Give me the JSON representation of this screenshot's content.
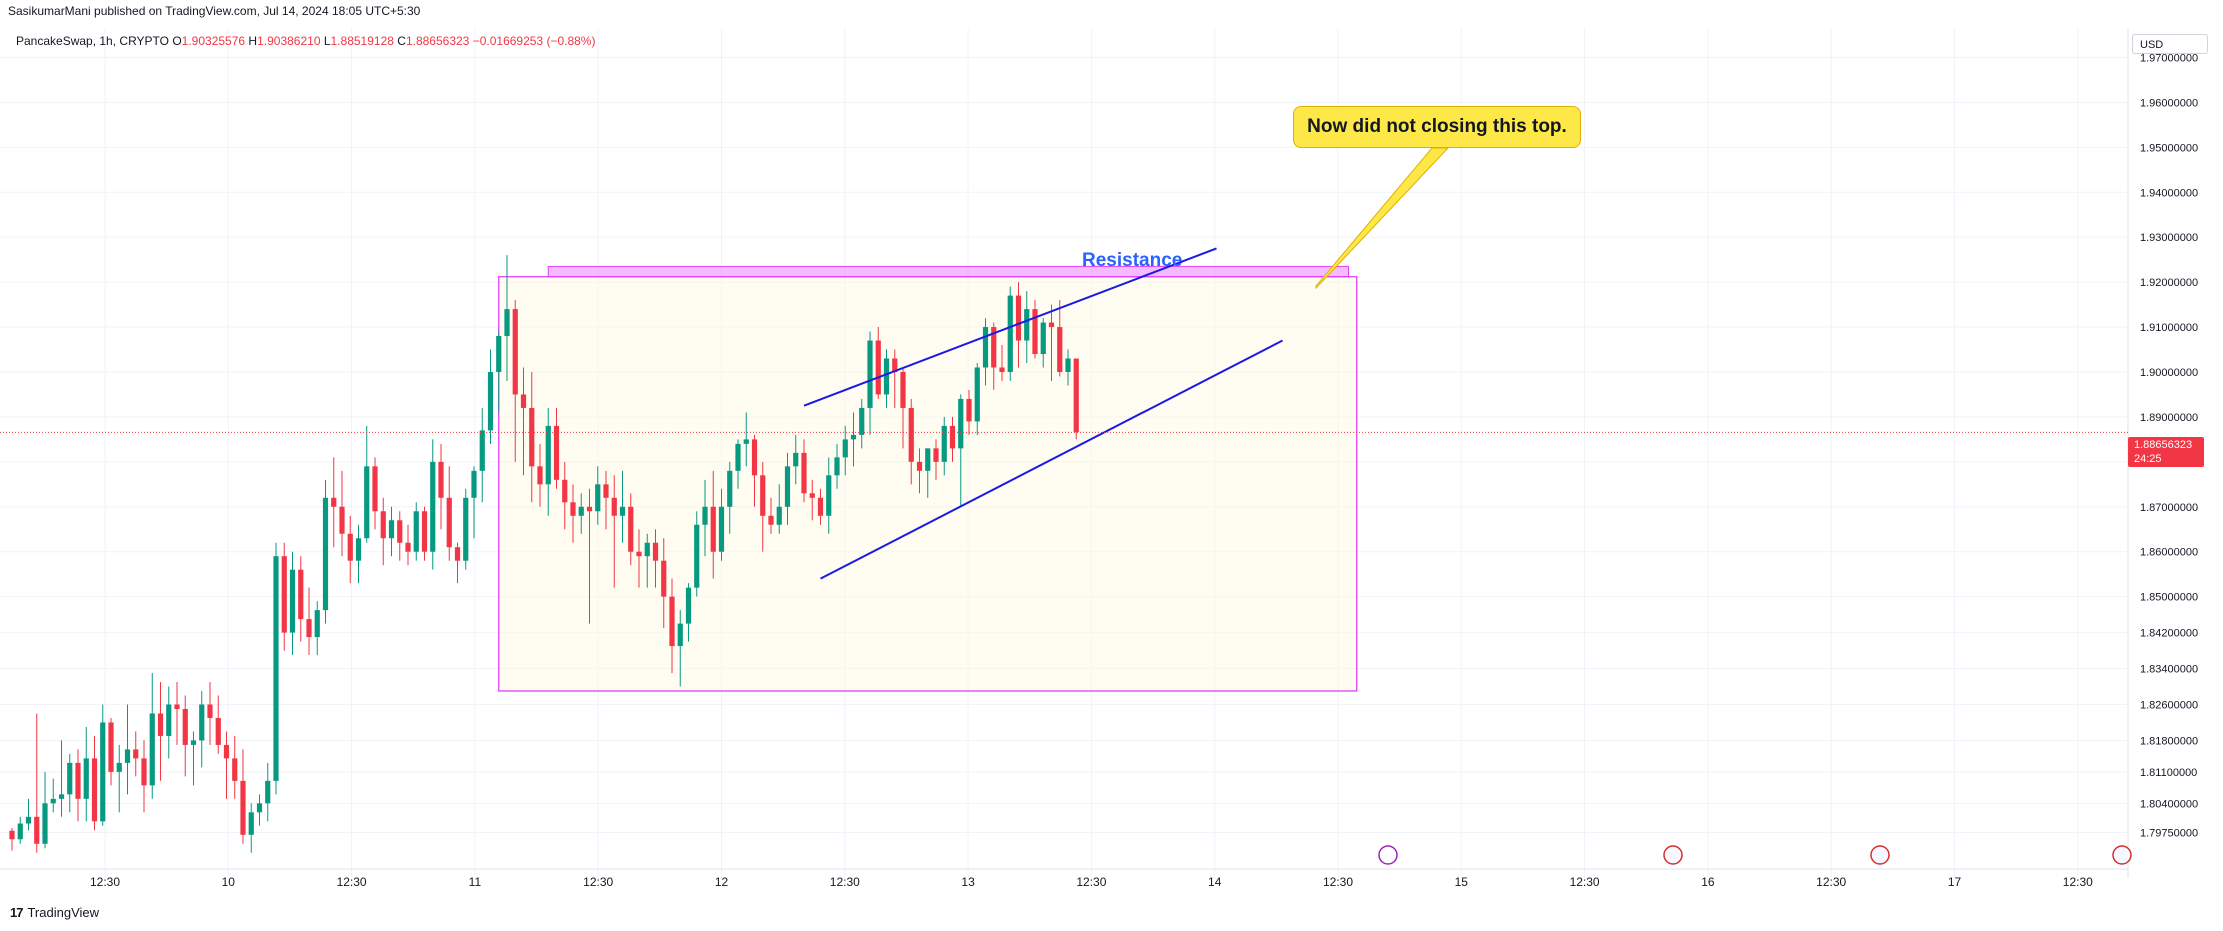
{
  "header": {
    "published": "SasikumarMani published on TradingView.com, Jul 14, 2024 18:05 UTC+5:30",
    "symbol": "PancakeSwap, 1h, CRYPTO",
    "open_label": "O",
    "open": "1.90325576",
    "high_label": "H",
    "high": "1.90386210",
    "low_label": "L",
    "low": "1.88519128",
    "close_label": "C",
    "close": "1.88656323",
    "change": "−0.01669253 (−0.88%)"
  },
  "currency": "USD",
  "price_tag": {
    "price": "1.88656323",
    "countdown": "24:25"
  },
  "annotations": {
    "callout": "Now did not closing this top.",
    "resistance": "Resistance"
  },
  "footer": {
    "brand": "TradingView"
  },
  "colors": {
    "up": "#089981",
    "down": "#f23645",
    "trendline": "#1a1ae6",
    "zone": "#e040fb",
    "callout_bg": "#fde848",
    "resistance_text": "#2962ff"
  },
  "chart_data": {
    "type": "candlestick",
    "interval": "1h",
    "ylim": [
      1.7925,
      1.975
    ],
    "y_ticks": [
      "1.97000000",
      "1.96000000",
      "1.95000000",
      "1.94000000",
      "1.93000000",
      "1.92000000",
      "1.91000000",
      "1.90000000",
      "1.89000000",
      "1.88000000",
      "1.87000000",
      "1.86000000",
      "1.85000000",
      "1.84200000",
      "1.83400000",
      "1.82600000",
      "1.81800000",
      "1.81100000",
      "1.80400000",
      "1.79750000"
    ],
    "x_ticks": [
      "12:30",
      "10",
      "12:30",
      "11",
      "12:30",
      "12",
      "12:30",
      "13",
      "12:30",
      "14",
      "12:30",
      "15",
      "12:30",
      "16",
      "12:30",
      "17",
      "12:30"
    ],
    "last_price": 1.88656323,
    "candles": [
      [
        1.7979,
        1.7985,
        1.7935,
        1.796
      ],
      [
        1.796,
        1.801,
        1.795,
        1.7995
      ],
      [
        1.7995,
        1.805,
        1.798,
        1.801
      ],
      [
        1.801,
        1.824,
        1.793,
        1.795
      ],
      [
        1.795,
        1.811,
        1.794,
        1.804
      ],
      [
        1.804,
        1.8095,
        1.802,
        1.805
      ],
      [
        1.805,
        1.818,
        1.801,
        1.806
      ],
      [
        1.806,
        1.815,
        1.802,
        1.813
      ],
      [
        1.813,
        1.816,
        1.8,
        1.805
      ],
      [
        1.805,
        1.821,
        1.8,
        1.814
      ],
      [
        1.814,
        1.819,
        1.798,
        1.8
      ],
      [
        1.8,
        1.826,
        1.799,
        1.822
      ],
      [
        1.822,
        1.823,
        1.808,
        1.811
      ],
      [
        1.811,
        1.817,
        1.802,
        1.813
      ],
      [
        1.813,
        1.826,
        1.806,
        1.816
      ],
      [
        1.816,
        1.82,
        1.81,
        1.814
      ],
      [
        1.814,
        1.818,
        1.802,
        1.808
      ],
      [
        1.808,
        1.833,
        1.805,
        1.824
      ],
      [
        1.824,
        1.831,
        1.809,
        1.819
      ],
      [
        1.819,
        1.83,
        1.814,
        1.826
      ],
      [
        1.826,
        1.831,
        1.817,
        1.825
      ],
      [
        1.825,
        1.828,
        1.81,
        1.817
      ],
      [
        1.817,
        1.82,
        1.808,
        1.818
      ],
      [
        1.818,
        1.829,
        1.812,
        1.826
      ],
      [
        1.826,
        1.831,
        1.817,
        1.823
      ],
      [
        1.823,
        1.828,
        1.815,
        1.817
      ],
      [
        1.817,
        1.82,
        1.805,
        1.814
      ],
      [
        1.814,
        1.819,
        1.805,
        1.809
      ],
      [
        1.809,
        1.816,
        1.795,
        1.797
      ],
      [
        1.797,
        1.804,
        1.793,
        1.802
      ],
      [
        1.802,
        1.806,
        1.799,
        1.804
      ],
      [
        1.804,
        1.813,
        1.8,
        1.809
      ],
      [
        1.809,
        1.862,
        1.806,
        1.859
      ],
      [
        1.859,
        1.862,
        1.838,
        1.842
      ],
      [
        1.842,
        1.86,
        1.837,
        1.856
      ],
      [
        1.856,
        1.859,
        1.84,
        1.845
      ],
      [
        1.845,
        1.852,
        1.837,
        1.841
      ],
      [
        1.841,
        1.849,
        1.837,
        1.847
      ],
      [
        1.847,
        1.876,
        1.844,
        1.872
      ],
      [
        1.872,
        1.881,
        1.861,
        1.87
      ],
      [
        1.87,
        1.878,
        1.859,
        1.864
      ],
      [
        1.864,
        1.868,
        1.853,
        1.858
      ],
      [
        1.858,
        1.866,
        1.853,
        1.863
      ],
      [
        1.863,
        1.888,
        1.862,
        1.879
      ],
      [
        1.879,
        1.881,
        1.865,
        1.869
      ],
      [
        1.869,
        1.872,
        1.857,
        1.863
      ],
      [
        1.863,
        1.87,
        1.859,
        1.867
      ],
      [
        1.867,
        1.869,
        1.858,
        1.862
      ],
      [
        1.862,
        1.866,
        1.857,
        1.86
      ],
      [
        1.86,
        1.871,
        1.858,
        1.869
      ],
      [
        1.869,
        1.87,
        1.858,
        1.86
      ],
      [
        1.86,
        1.885,
        1.856,
        1.88
      ],
      [
        1.88,
        1.884,
        1.865,
        1.872
      ],
      [
        1.872,
        1.879,
        1.858,
        1.861
      ],
      [
        1.861,
        1.862,
        1.853,
        1.858
      ],
      [
        1.858,
        1.874,
        1.856,
        1.872
      ],
      [
        1.872,
        1.879,
        1.863,
        1.878
      ],
      [
        1.878,
        1.892,
        1.871,
        1.887
      ],
      [
        1.887,
        1.905,
        1.884,
        1.9
      ],
      [
        1.9,
        1.909,
        1.891,
        1.908
      ],
      [
        1.908,
        1.926,
        1.898,
        1.914
      ],
      [
        1.914,
        1.916,
        1.88,
        1.895
      ],
      [
        1.895,
        1.901,
        1.877,
        1.892
      ],
      [
        1.892,
        1.9,
        1.871,
        1.879
      ],
      [
        1.879,
        1.884,
        1.87,
        1.875
      ],
      [
        1.875,
        1.892,
        1.868,
        1.888
      ],
      [
        1.888,
        1.892,
        1.874,
        1.876
      ],
      [
        1.876,
        1.88,
        1.865,
        1.871
      ],
      [
        1.871,
        1.875,
        1.862,
        1.868
      ],
      [
        1.868,
        1.873,
        1.864,
        1.87
      ],
      [
        1.87,
        1.874,
        1.844,
        1.869
      ],
      [
        1.869,
        1.879,
        1.866,
        1.875
      ],
      [
        1.875,
        1.878,
        1.865,
        1.872
      ],
      [
        1.872,
        1.877,
        1.852,
        1.868
      ],
      [
        1.868,
        1.878,
        1.862,
        1.87
      ],
      [
        1.87,
        1.873,
        1.857,
        1.86
      ],
      [
        1.86,
        1.865,
        1.852,
        1.859
      ],
      [
        1.859,
        1.864,
        1.852,
        1.862
      ],
      [
        1.862,
        1.865,
        1.852,
        1.858
      ],
      [
        1.858,
        1.863,
        1.843,
        1.85
      ],
      [
        1.85,
        1.854,
        1.833,
        1.839
      ],
      [
        1.839,
        1.847,
        1.83,
        1.844
      ],
      [
        1.844,
        1.853,
        1.84,
        1.852
      ],
      [
        1.852,
        1.869,
        1.85,
        1.866
      ],
      [
        1.866,
        1.876,
        1.859,
        1.87
      ],
      [
        1.87,
        1.878,
        1.854,
        1.86
      ],
      [
        1.86,
        1.874,
        1.858,
        1.87
      ],
      [
        1.87,
        1.88,
        1.864,
        1.878
      ],
      [
        1.878,
        1.885,
        1.874,
        1.884
      ],
      [
        1.884,
        1.891,
        1.879,
        1.885
      ],
      [
        1.885,
        1.886,
        1.87,
        1.877
      ],
      [
        1.877,
        1.88,
        1.86,
        1.868
      ],
      [
        1.868,
        1.872,
        1.864,
        1.866
      ],
      [
        1.866,
        1.875,
        1.864,
        1.87
      ],
      [
        1.87,
        1.882,
        1.866,
        1.879
      ],
      [
        1.879,
        1.886,
        1.875,
        1.882
      ],
      [
        1.882,
        1.885,
        1.871,
        1.873
      ],
      [
        1.873,
        1.876,
        1.867,
        1.872
      ],
      [
        1.872,
        1.874,
        1.866,
        1.868
      ],
      [
        1.868,
        1.881,
        1.864,
        1.877
      ],
      [
        1.877,
        1.884,
        1.874,
        1.881
      ],
      [
        1.881,
        1.888,
        1.877,
        1.885
      ],
      [
        1.885,
        1.891,
        1.879,
        1.886
      ],
      [
        1.886,
        1.894,
        1.883,
        1.892
      ],
      [
        1.892,
        1.909,
        1.886,
        1.907
      ],
      [
        1.907,
        1.91,
        1.894,
        1.895
      ],
      [
        1.895,
        1.905,
        1.892,
        1.903
      ],
      [
        1.903,
        1.905,
        1.892,
        1.9
      ],
      [
        1.9,
        1.901,
        1.883,
        1.892
      ],
      [
        1.892,
        1.894,
        1.875,
        1.88
      ],
      [
        1.88,
        1.883,
        1.873,
        1.878
      ],
      [
        1.878,
        1.883,
        1.872,
        1.883
      ],
      [
        1.883,
        1.885,
        1.876,
        1.88
      ],
      [
        1.88,
        1.89,
        1.877,
        1.888
      ],
      [
        1.888,
        1.89,
        1.88,
        1.883
      ],
      [
        1.883,
        1.895,
        1.87,
        1.894
      ],
      [
        1.894,
        1.896,
        1.886,
        1.889
      ],
      [
        1.889,
        1.902,
        1.886,
        1.901
      ],
      [
        1.901,
        1.912,
        1.897,
        1.91
      ],
      [
        1.91,
        1.911,
        1.896,
        1.901
      ],
      [
        1.901,
        1.906,
        1.898,
        1.9
      ],
      [
        1.9,
        1.919,
        1.898,
        1.917
      ],
      [
        1.917,
        1.92,
        1.901,
        1.907
      ],
      [
        1.907,
        1.918,
        1.902,
        1.914
      ],
      [
        1.914,
        1.916,
        1.903,
        1.904
      ],
      [
        1.904,
        1.912,
        1.901,
        1.911
      ],
      [
        1.911,
        1.915,
        1.898,
        1.91
      ],
      [
        1.91,
        1.916,
        1.899,
        1.9
      ],
      [
        1.9,
        1.905,
        1.897,
        1.903
      ],
      [
        1.903,
        1.903,
        1.885,
        1.8866
      ]
    ],
    "drawings": {
      "zone_box": {
        "from_candle": 59,
        "to_candle": 163,
        "top": 1.9212,
        "bottom": 1.829
      },
      "resistance_band": {
        "from_candle": 65,
        "to_candle": 162,
        "top": 1.9235,
        "bottom": 1.9212
      },
      "upper_trendline": {
        "from": [
          96,
          1.8925
        ],
        "to": [
          146,
          1.9275
        ]
      },
      "lower_trendline": {
        "from": [
          98,
          1.854
        ],
        "to": [
          154,
          1.907
        ]
      }
    }
  }
}
